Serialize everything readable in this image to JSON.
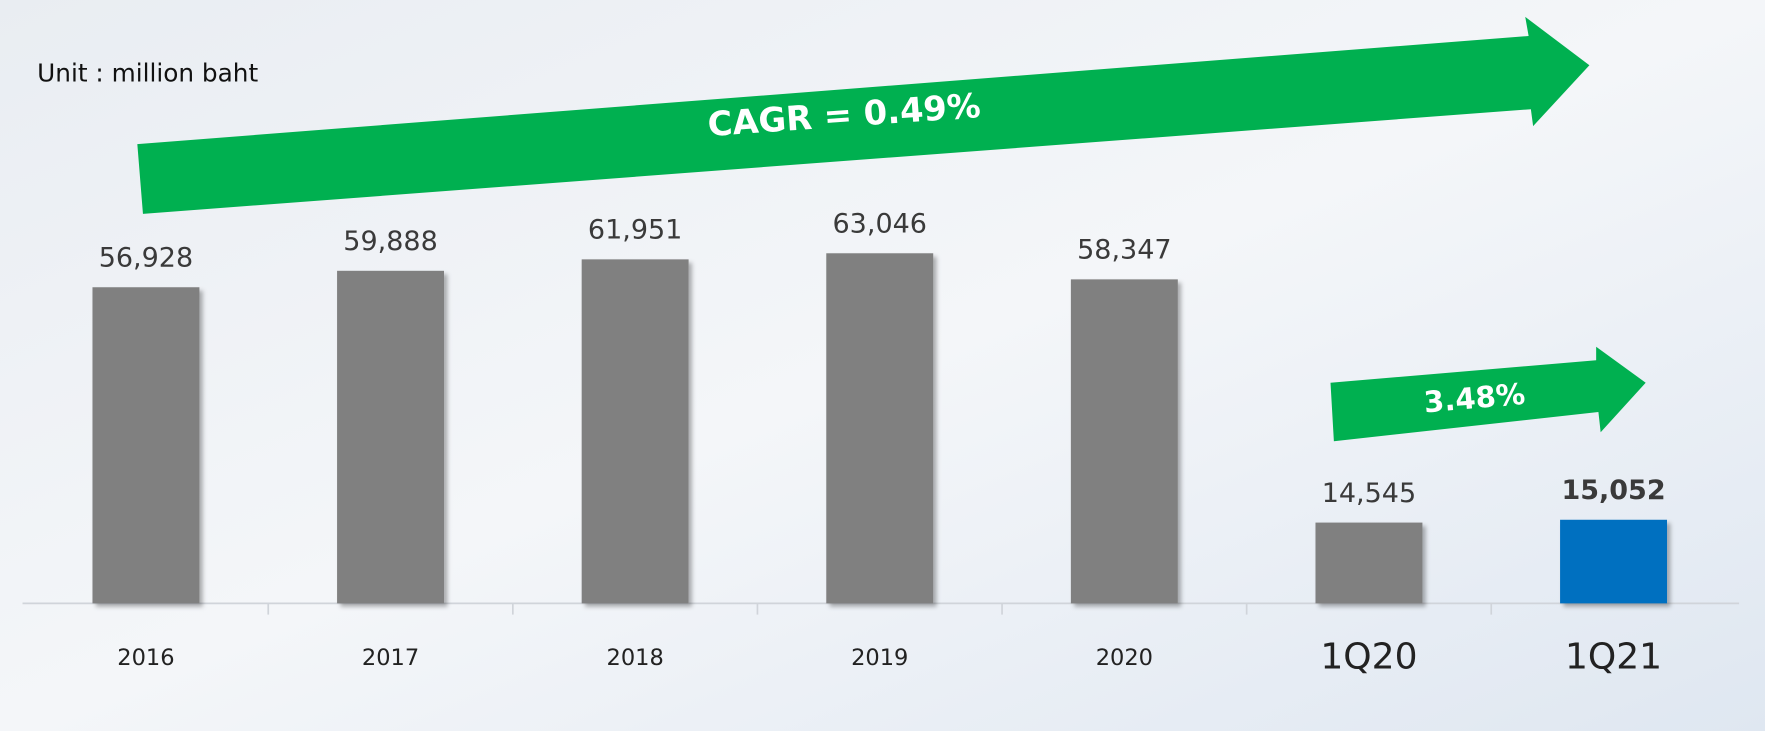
{
  "chart_data": {
    "type": "bar",
    "subtitle": "Unit : million baht",
    "categories": [
      "2016",
      "2017",
      "2018",
      "2019",
      "2020",
      "1Q20",
      "1Q21"
    ],
    "values": [
      56928,
      59888,
      61951,
      63046,
      58347,
      14545,
      15052
    ],
    "value_labels": [
      "56,928",
      "59,888",
      "61,951",
      "63,046",
      "58,347",
      "14,545",
      "15,052"
    ],
    "colors": [
      "#808080",
      "#808080",
      "#808080",
      "#808080",
      "#808080",
      "#808080",
      "#0070c0"
    ],
    "annotations": [
      "CAGR = 0.49%",
      "3.48%"
    ],
    "arrow_color": "#00b050"
  }
}
